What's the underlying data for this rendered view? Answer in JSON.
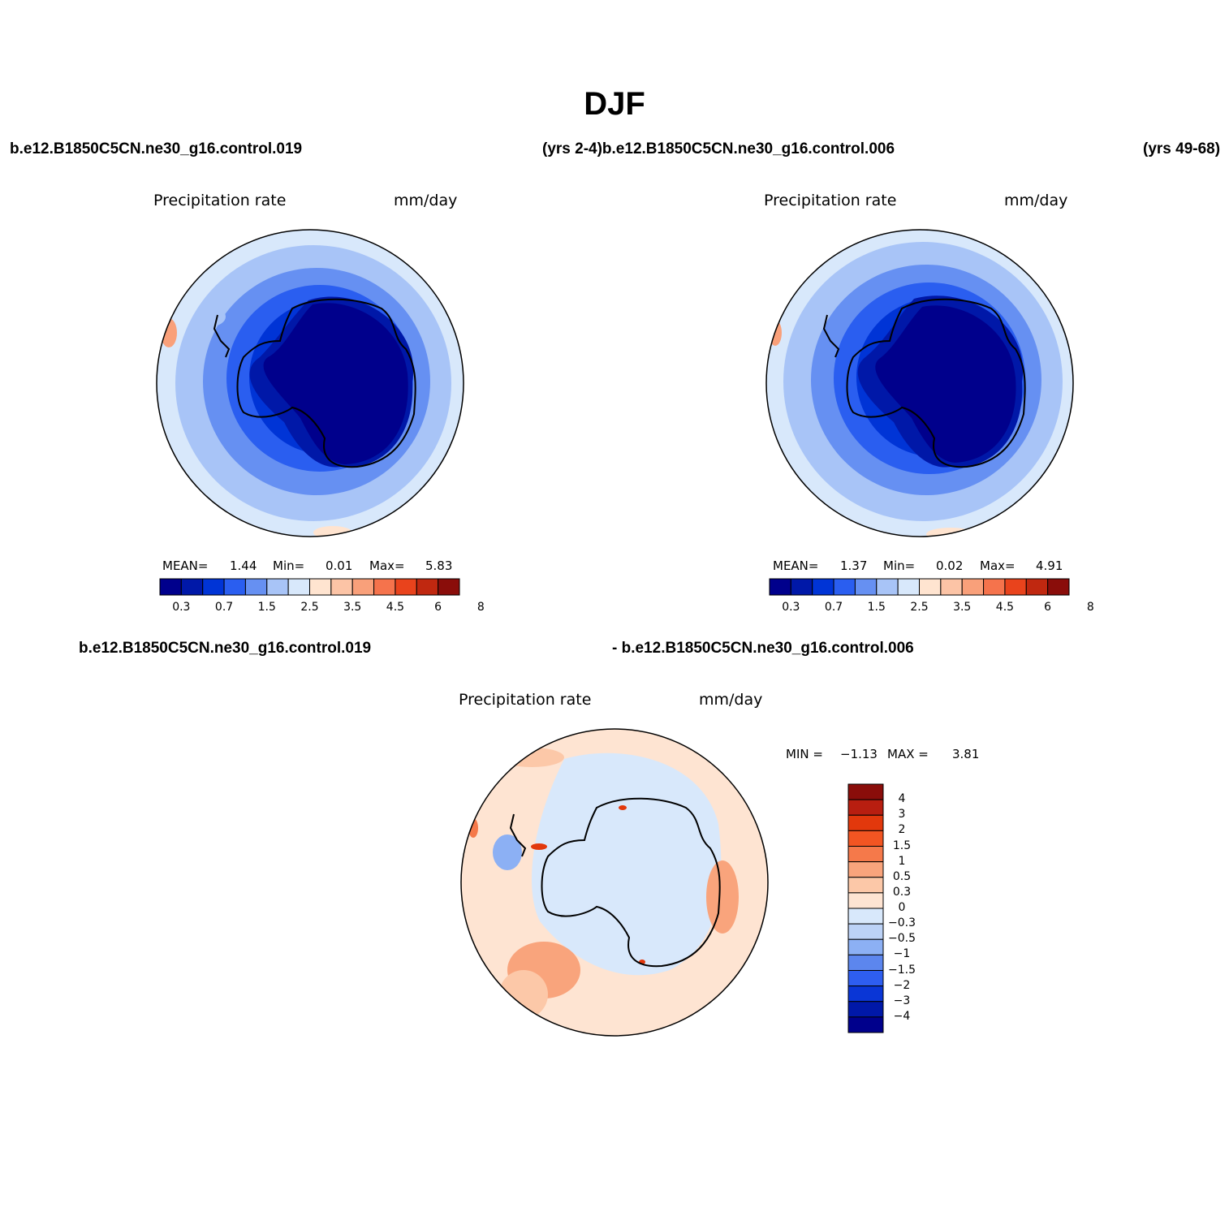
{
  "title": "DJF",
  "header": {
    "case_a": "b.e12.B1850C5CN.ne30_g16.control.019",
    "years_a": "(yrs 2-4)",
    "case_b": "b.e12.B1850C5CN.ne30_g16.control.006",
    "years_b": "(yrs 49-68)"
  },
  "diff_header": {
    "case_a": "b.e12.B1850C5CN.ne30_g16.control.019",
    "case_b": "- b.e12.B1850C5CN.ne30_g16.control.006"
  },
  "panels": [
    {
      "field": "Precipitation  rate",
      "units": "mm/day",
      "stats": {
        "mean_label": "MEAN=",
        "mean": "1.44",
        "min_label": "Min=",
        "min": "0.01",
        "max_label": "Max=",
        "max": "5.83"
      }
    },
    {
      "field": "Precipitation  rate",
      "units": "mm/day",
      "stats": {
        "mean_label": "MEAN=",
        "mean": "1.37",
        "min_label": "Min=",
        "min": "0.02",
        "max_label": "Max=",
        "max": "4.91"
      }
    }
  ],
  "diff_panel": {
    "field": "Precipitation  rate",
    "units": "mm/day",
    "stats": {
      "min_label": "MIN =",
      "min": "−1.13",
      "max_label": "MAX =",
      "max": "3.81"
    }
  },
  "colorbar": {
    "colors": [
      "#00008c",
      "#0018a8",
      "#0034d6",
      "#2a5ef0",
      "#6690f2",
      "#a8c4f7",
      "#d8e8fb",
      "#ffe4d0",
      "#fcc4a6",
      "#f9a07a",
      "#f5734c",
      "#e9431c",
      "#c02810",
      "#8a0d0a"
    ],
    "tick_labels": [
      "0.3",
      "0.7",
      "1.5",
      "2.5",
      "3.5",
      "4.5",
      "6",
      "8"
    ]
  },
  "diff_colorbar": {
    "colors": [
      "#8a0d0a",
      "#b81e10",
      "#e2380c",
      "#f25522",
      "#f5794a",
      "#f9a47c",
      "#fcc8a8",
      "#fee4d2",
      "#d8e8fb",
      "#bcd2f6",
      "#8cb0f4",
      "#5c86ee",
      "#2e5ef0",
      "#0a36d6",
      "#0018a8",
      "#00008c"
    ],
    "tick_labels": [
      "4",
      "3",
      "2",
      "1.5",
      "1",
      "0.5",
      "0.3",
      "0",
      "−0.3",
      "−0.5",
      "−1",
      "−1.5",
      "−2",
      "−3",
      "−4"
    ]
  }
}
